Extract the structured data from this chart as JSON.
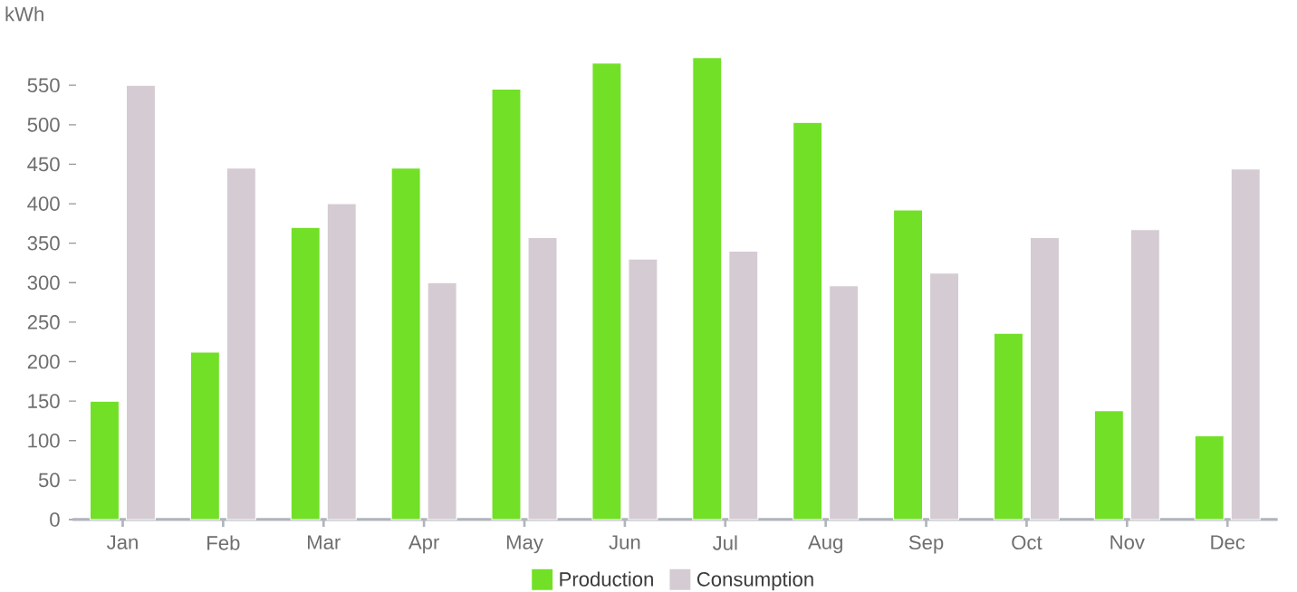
{
  "chart_data": {
    "type": "bar",
    "ylabel": "kWh",
    "categories": [
      "Jan",
      "Feb",
      "Mar",
      "Apr",
      "May",
      "Jun",
      "Jul",
      "Aug",
      "Sep",
      "Oct",
      "Nov",
      "Dec"
    ],
    "series": [
      {
        "name": "Production",
        "color": "#72e026",
        "values": [
          150,
          212,
          370,
          445,
          545,
          578,
          585,
          503,
          392,
          236,
          138,
          106
        ]
      },
      {
        "name": "Consumption",
        "color": "#d5cbd3",
        "values": [
          550,
          445,
          400,
          300,
          357,
          330,
          340,
          296,
          312,
          357,
          367,
          444
        ]
      }
    ],
    "ylim": [
      0,
      590
    ],
    "yticks": [
      0,
      50,
      100,
      150,
      200,
      250,
      300,
      350,
      400,
      450,
      500,
      550
    ],
    "legend": "bottom"
  }
}
